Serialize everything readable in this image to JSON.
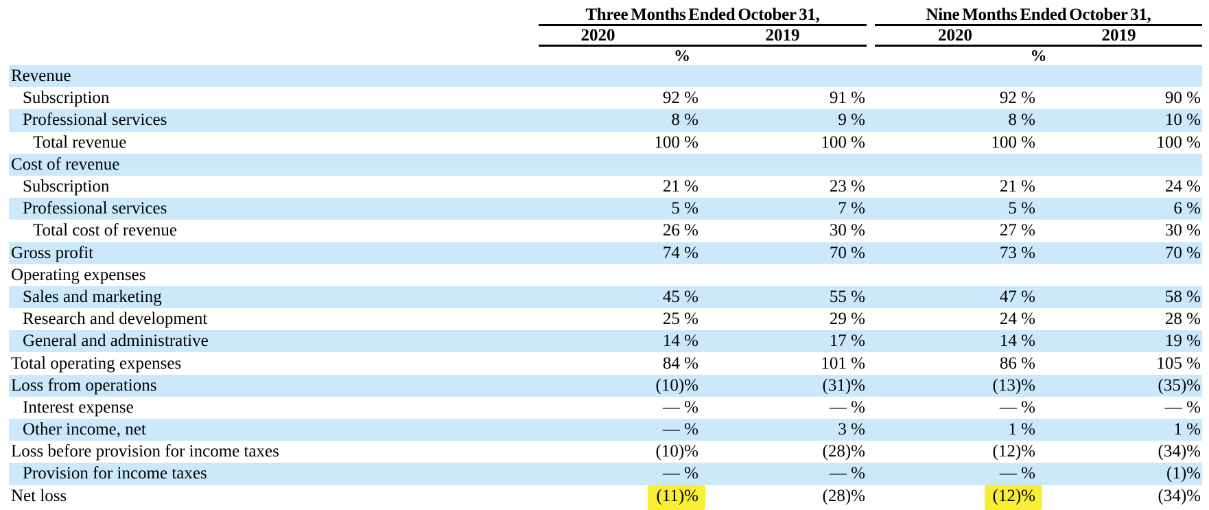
{
  "table": {
    "groups": [
      {
        "title": "Three Months Ended October 31,",
        "years": [
          "2020",
          "2019"
        ],
        "unit": "%"
      },
      {
        "title": "Nine Months Ended October 31,",
        "years": [
          "2020",
          "2019"
        ],
        "unit": "%"
      }
    ],
    "rows": [
      {
        "label": "Revenue",
        "indent": 0,
        "shaded": true,
        "values": [
          "",
          "",
          "",
          ""
        ]
      },
      {
        "label": "Subscription",
        "indent": 1,
        "shaded": false,
        "values": [
          "92 %",
          "91 %",
          "92 %",
          "90 %"
        ]
      },
      {
        "label": "Professional services",
        "indent": 1,
        "shaded": true,
        "values": [
          "8 %",
          "9 %",
          "8 %",
          "10 %"
        ]
      },
      {
        "label": "Total revenue",
        "indent": 2,
        "shaded": false,
        "values": [
          "100 %",
          "100 %",
          "100 %",
          "100 %"
        ]
      },
      {
        "label": "Cost of revenue",
        "indent": 0,
        "shaded": true,
        "values": [
          "",
          "",
          "",
          ""
        ]
      },
      {
        "label": "Subscription",
        "indent": 1,
        "shaded": false,
        "values": [
          "21 %",
          "23 %",
          "21 %",
          "24 %"
        ]
      },
      {
        "label": "Professional services",
        "indent": 1,
        "shaded": true,
        "values": [
          "5 %",
          "7 %",
          "5 %",
          "6 %"
        ]
      },
      {
        "label": "Total cost of revenue",
        "indent": 2,
        "shaded": false,
        "values": [
          "26 %",
          "30 %",
          "27 %",
          "30 %"
        ]
      },
      {
        "label": "Gross profit",
        "indent": 0,
        "shaded": true,
        "values": [
          "74 %",
          "70 %",
          "73 %",
          "70 %"
        ]
      },
      {
        "label": "Operating expenses",
        "indent": 0,
        "shaded": false,
        "values": [
          "",
          "",
          "",
          ""
        ]
      },
      {
        "label": "Sales and marketing",
        "indent": 1,
        "shaded": true,
        "values": [
          "45 %",
          "55 %",
          "47 %",
          "58 %"
        ]
      },
      {
        "label": "Research and development",
        "indent": 1,
        "shaded": false,
        "values": [
          "25 %",
          "29 %",
          "24 %",
          "28 %"
        ]
      },
      {
        "label": "General and administrative",
        "indent": 1,
        "shaded": true,
        "values": [
          "14 %",
          "17 %",
          "14 %",
          "19 %"
        ]
      },
      {
        "label": "Total operating expenses",
        "indent": 0,
        "shaded": false,
        "values": [
          "84 %",
          "101 %",
          "86 %",
          "105 %"
        ]
      },
      {
        "label": "Loss from operations",
        "indent": 0,
        "shaded": true,
        "values": [
          "(10)%",
          "(31)%",
          "(13)%",
          "(35)%"
        ]
      },
      {
        "label": "Interest expense",
        "indent": 1,
        "shaded": false,
        "values": [
          "— %",
          "— %",
          "— %",
          "— %"
        ]
      },
      {
        "label": "Other income, net",
        "indent": 1,
        "shaded": true,
        "values": [
          "— %",
          "3 %",
          "1 %",
          "1 %"
        ]
      },
      {
        "label": "Loss before provision for income taxes",
        "indent": 0,
        "shaded": false,
        "values": [
          "(10)%",
          "(28)%",
          "(12)%",
          "(34)%"
        ]
      },
      {
        "label": "Provision for income taxes",
        "indent": 1,
        "shaded": true,
        "values": [
          "— %",
          "— %",
          "— %",
          "(1)%"
        ]
      },
      {
        "label": "Net loss",
        "indent": 0,
        "shaded": false,
        "values": [
          "(11)%",
          "(28)%",
          "(12)%",
          "(34)%"
        ],
        "highlights": [
          0,
          2
        ]
      }
    ],
    "colors": {
      "stripe": "#cbe9fa",
      "highlight": "#f8ee35",
      "text": "#000000",
      "rule": "#000000"
    }
  }
}
